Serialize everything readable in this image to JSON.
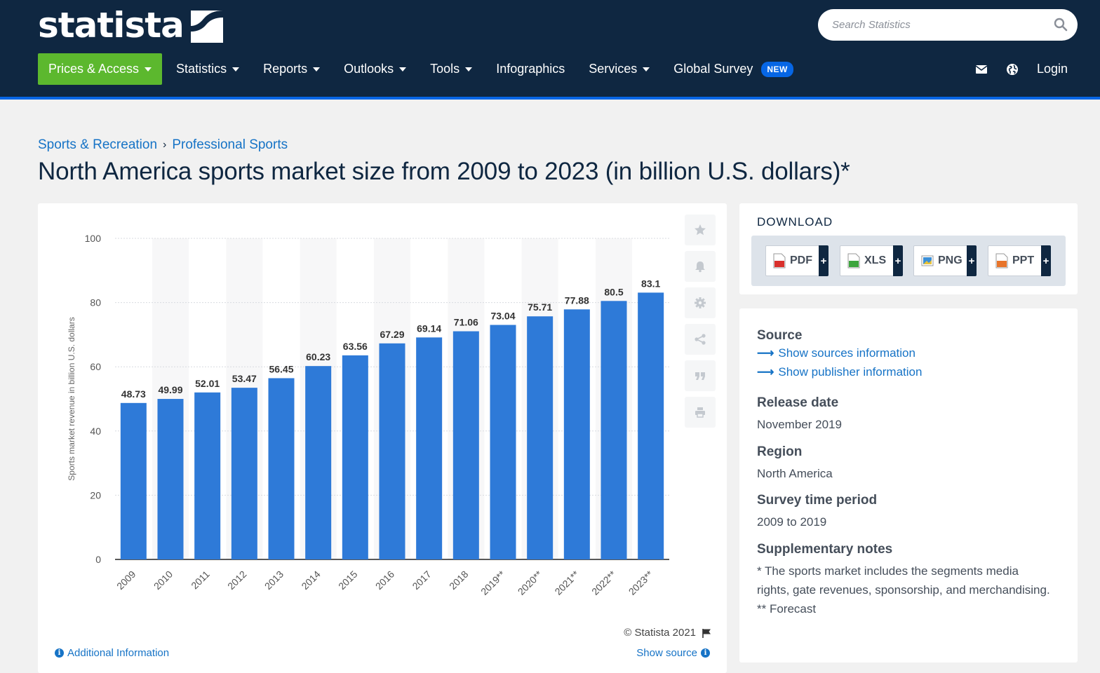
{
  "header": {
    "logo_text": "statista",
    "search_placeholder": "Search Statistics",
    "nav": [
      {
        "label": "Prices & Access",
        "caret": true
      },
      {
        "label": "Statistics",
        "caret": true
      },
      {
        "label": "Reports",
        "caret": true
      },
      {
        "label": "Outlooks",
        "caret": true
      },
      {
        "label": "Tools",
        "caret": true
      },
      {
        "label": "Infographics",
        "caret": false
      },
      {
        "label": "Services",
        "caret": true
      },
      {
        "label": "Global Survey",
        "caret": false
      }
    ],
    "new_badge": "NEW",
    "login": "Login",
    "icons": [
      "mail-icon",
      "globe-icon"
    ],
    "colors": {
      "bg": "#0f2741",
      "accent": "#0666e5",
      "prices_bg": "#5cb82e"
    }
  },
  "breadcrumb": {
    "items": [
      "Sports & Recreation",
      "Professional Sports"
    ],
    "separator": "›"
  },
  "page_title": "North America sports market size from 2009 to 2023 (in billion U.S. dollars)*",
  "chart_data": {
    "type": "bar",
    "categories": [
      "2009",
      "2010",
      "2011",
      "2012",
      "2013",
      "2014",
      "2015",
      "2016",
      "2017",
      "2018",
      "2019**",
      "2020**",
      "2021**",
      "2022**",
      "2023**"
    ],
    "values": [
      48.73,
      49.99,
      52.01,
      53.47,
      56.45,
      60.23,
      63.56,
      67.29,
      69.14,
      71.06,
      73.04,
      75.71,
      77.88,
      80.5,
      83.1
    ],
    "value_labels": [
      "48.73",
      "49.99",
      "52.01",
      "53.47",
      "56.45",
      "60.23",
      "63.56",
      "67.29",
      "69.14",
      "71.06",
      "73.04",
      "75.71",
      "77.88",
      "80.5",
      "83.1"
    ],
    "title": "",
    "xlabel": "",
    "ylabel": "Sports market revenue in billion U.S. dollars",
    "ylim": [
      0,
      100
    ],
    "yticks": [
      "0",
      "20",
      "40",
      "60",
      "80",
      "100"
    ],
    "grid": true,
    "bar_color": "#2e7ad8"
  },
  "chart_tools": [
    "star-icon",
    "bell-icon",
    "gear-icon",
    "share-icon",
    "quote-icon",
    "print-icon"
  ],
  "chart_footer": {
    "copyright": "© Statista 2021",
    "additional_info": "Additional Information",
    "show_source": "Show source"
  },
  "download": {
    "title": "DOWNLOAD",
    "buttons": [
      {
        "label": "PDF",
        "plus": "+",
        "color": "#d9302c"
      },
      {
        "label": "XLS",
        "plus": "+",
        "color": "#3ea53e"
      },
      {
        "label": "PNG",
        "plus": "+",
        "color": "#3a8fd8"
      },
      {
        "label": "PPT",
        "plus": "+",
        "color": "#e8742a"
      }
    ]
  },
  "info": {
    "source_title": "Source",
    "show_sources": "Show sources information",
    "show_publisher": "Show publisher information",
    "release_title": "Release date",
    "release_value": "November 2019",
    "region_title": "Region",
    "region_value": "North America",
    "survey_title": "Survey time period",
    "survey_value": "2009 to 2019",
    "notes_title": "Supplementary notes",
    "notes_value_1": "* The sports market includes the segments media rights, gate revenues, sponsorship, and merchandising.",
    "notes_value_2": "** Forecast"
  }
}
